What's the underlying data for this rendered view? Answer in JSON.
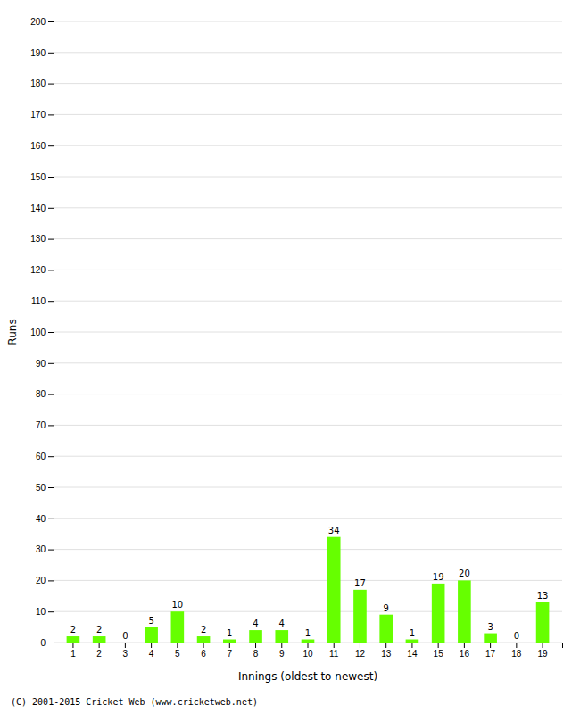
{
  "chart_data": {
    "type": "bar",
    "xlabel": "Innings (oldest to newest)",
    "ylabel": "Runs",
    "categories": [
      "1",
      "2",
      "3",
      "4",
      "5",
      "6",
      "7",
      "8",
      "9",
      "10",
      "11",
      "12",
      "13",
      "14",
      "15",
      "16",
      "17",
      "18",
      "19"
    ],
    "values": [
      2,
      2,
      0,
      5,
      10,
      2,
      1,
      4,
      4,
      1,
      34,
      17,
      9,
      1,
      19,
      20,
      3,
      0,
      13
    ],
    "color": "#66ff00",
    "ylim": [
      0,
      200
    ],
    "yticks": [
      0,
      10,
      20,
      30,
      40,
      50,
      60,
      70,
      80,
      90,
      100,
      110,
      120,
      130,
      140,
      150,
      160,
      170,
      180,
      190,
      200
    ],
    "grid": true,
    "data_labels": true,
    "annotations": [
      "(C) 2001-2015 Cricket Web (www.cricketweb.net)"
    ]
  }
}
